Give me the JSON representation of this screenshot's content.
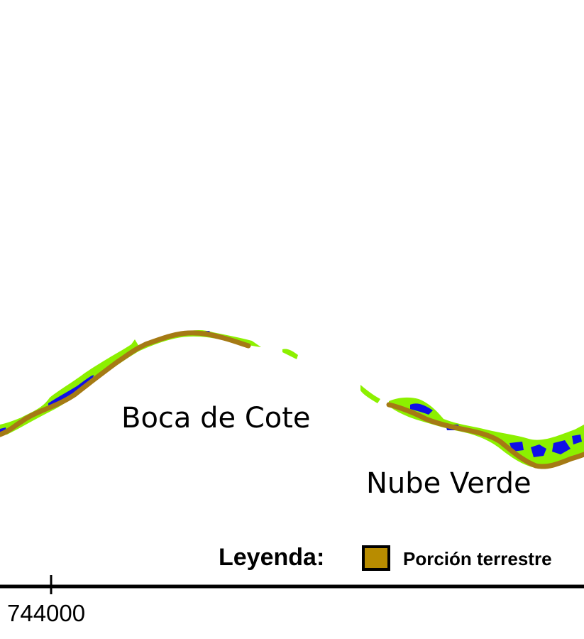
{
  "map": {
    "places": {
      "boca_de_cote": "Boca de Cote",
      "nube_verde": "Nube Verde"
    },
    "legend": {
      "title": "Leyenda:",
      "items": [
        {
          "label": "Porción terrestre",
          "color": "#b88c00"
        }
      ]
    },
    "axis": {
      "tick_labels": [
        "744000"
      ]
    },
    "colors": {
      "land": "#a57a14",
      "vegetation": "#8cf000",
      "water": "#1010e8"
    }
  }
}
